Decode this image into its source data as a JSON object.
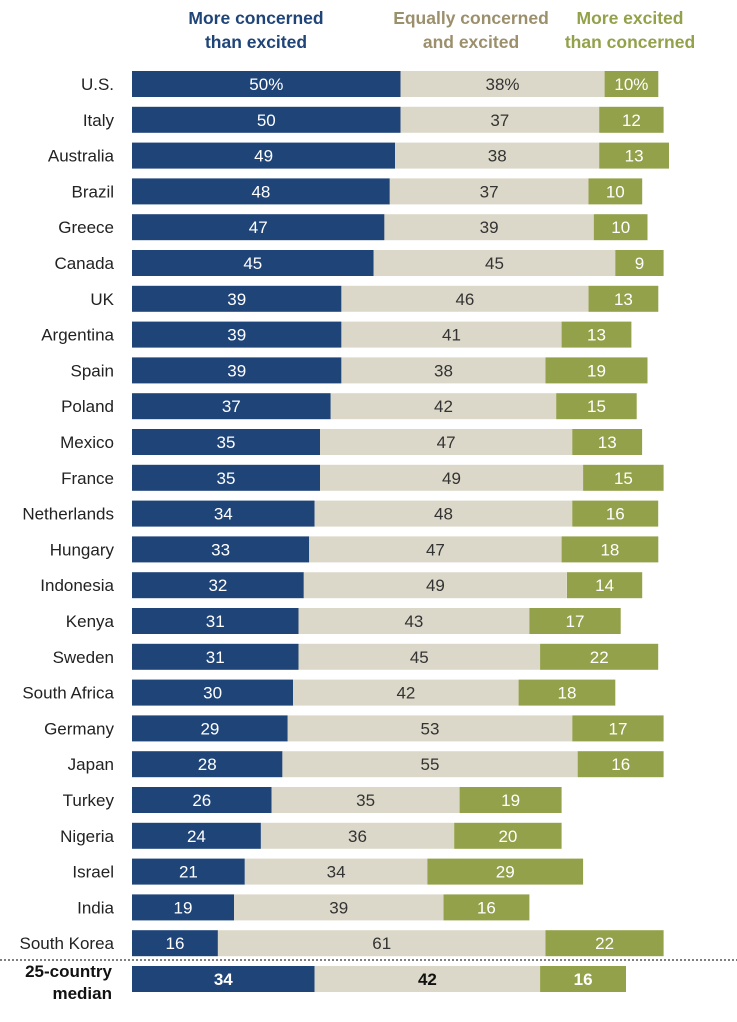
{
  "chart_data": {
    "type": "bar",
    "orientation": "horizontal",
    "stacked": true,
    "series": [
      {
        "name": "More concerned than excited",
        "color": "#1f4478",
        "label_color": "#ffffff"
      },
      {
        "name": "Equally concerned and excited",
        "color": "#dcd8c9",
        "label_color": "#333333"
      },
      {
        "name": "More excited than concerned",
        "color": "#93a14a",
        "label_color": "#ffffff"
      }
    ],
    "legend": [
      {
        "line1": "More concerned",
        "line2": "than excited",
        "color": "#1f4478"
      },
      {
        "line1": "Equally concerned",
        "line2": "and excited",
        "color": "#9c8f6c"
      },
      {
        "line1": "More excited",
        "line2": "than concerned",
        "color": "#93a14a"
      }
    ],
    "rows": [
      {
        "country": "U.S.",
        "values": [
          50,
          38,
          10
        ],
        "labels": [
          "50%",
          "38%",
          "10%"
        ]
      },
      {
        "country": "Italy",
        "values": [
          50,
          37,
          12
        ],
        "labels": [
          "50",
          "37",
          "12"
        ]
      },
      {
        "country": "Australia",
        "values": [
          49,
          38,
          13
        ],
        "labels": [
          "49",
          "38",
          "13"
        ]
      },
      {
        "country": "Brazil",
        "values": [
          48,
          37,
          10
        ],
        "labels": [
          "48",
          "37",
          "10"
        ]
      },
      {
        "country": "Greece",
        "values": [
          47,
          39,
          10
        ],
        "labels": [
          "47",
          "39",
          "10"
        ]
      },
      {
        "country": "Canada",
        "values": [
          45,
          45,
          9
        ],
        "labels": [
          "45",
          "45",
          "9"
        ]
      },
      {
        "country": "UK",
        "values": [
          39,
          46,
          13
        ],
        "labels": [
          "39",
          "46",
          "13"
        ]
      },
      {
        "country": "Argentina",
        "values": [
          39,
          41,
          13
        ],
        "labels": [
          "39",
          "41",
          "13"
        ]
      },
      {
        "country": "Spain",
        "values": [
          39,
          38,
          19
        ],
        "labels": [
          "39",
          "38",
          "19"
        ]
      },
      {
        "country": "Poland",
        "values": [
          37,
          42,
          15
        ],
        "labels": [
          "37",
          "42",
          "15"
        ]
      },
      {
        "country": "Mexico",
        "values": [
          35,
          47,
          13
        ],
        "labels": [
          "35",
          "47",
          "13"
        ]
      },
      {
        "country": "France",
        "values": [
          35,
          49,
          15
        ],
        "labels": [
          "35",
          "49",
          "15"
        ]
      },
      {
        "country": "Netherlands",
        "values": [
          34,
          48,
          16
        ],
        "labels": [
          "34",
          "48",
          "16"
        ]
      },
      {
        "country": "Hungary",
        "values": [
          33,
          47,
          18
        ],
        "labels": [
          "33",
          "47",
          "18"
        ]
      },
      {
        "country": "Indonesia",
        "values": [
          32,
          49,
          14
        ],
        "labels": [
          "32",
          "49",
          "14"
        ]
      },
      {
        "country": "Kenya",
        "values": [
          31,
          43,
          17
        ],
        "labels": [
          "31",
          "43",
          "17"
        ]
      },
      {
        "country": "Sweden",
        "values": [
          31,
          45,
          22
        ],
        "labels": [
          "31",
          "45",
          "22"
        ]
      },
      {
        "country": "South Africa",
        "values": [
          30,
          42,
          18
        ],
        "labels": [
          "30",
          "42",
          "18"
        ]
      },
      {
        "country": "Germany",
        "values": [
          29,
          53,
          17
        ],
        "labels": [
          "29",
          "53",
          "17"
        ]
      },
      {
        "country": "Japan",
        "values": [
          28,
          55,
          16
        ],
        "labels": [
          "28",
          "55",
          "16"
        ]
      },
      {
        "country": "Turkey",
        "values": [
          26,
          35,
          19
        ],
        "labels": [
          "26",
          "35",
          "19"
        ]
      },
      {
        "country": "Nigeria",
        "values": [
          24,
          36,
          20
        ],
        "labels": [
          "24",
          "36",
          "20"
        ]
      },
      {
        "country": "Israel",
        "values": [
          21,
          34,
          29
        ],
        "labels": [
          "21",
          "34",
          "29"
        ]
      },
      {
        "country": "India",
        "values": [
          19,
          39,
          16
        ],
        "labels": [
          "19",
          "39",
          "16"
        ]
      },
      {
        "country": "South Korea",
        "values": [
          16,
          61,
          22
        ],
        "labels": [
          "16",
          "61",
          "22"
        ]
      }
    ],
    "median": {
      "line1": "25-country",
      "line2": "median",
      "values": [
        34,
        42,
        16
      ],
      "labels": [
        "34",
        "42",
        "16"
      ]
    }
  }
}
